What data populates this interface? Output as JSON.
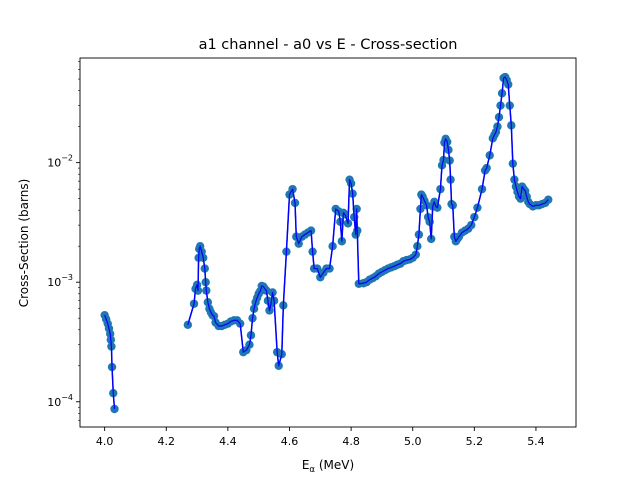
{
  "chart_data": {
    "type": "line",
    "title": "a1 channel - a0 vs E - Cross-section",
    "xlabel_main": "E",
    "xlabel_sub": "α",
    "xlabel_unit": " (MeV)",
    "ylabel": "Cross-Section (barns)",
    "xlim": [
      3.92,
      5.53
    ],
    "ylim": [
      6.15e-05,
      0.075
    ],
    "yscale": "log",
    "grid": false,
    "x_ticks": [
      4.0,
      4.2,
      4.4,
      4.6,
      4.8,
      5.0,
      5.2,
      5.4
    ],
    "x_tick_labels": [
      "4.0",
      "4.2",
      "4.4",
      "4.6",
      "4.8",
      "5.0",
      "5.2",
      "5.4"
    ],
    "y_major_ticks": [
      {
        "value": 0.0001,
        "base": "10",
        "exp": "−4"
      },
      {
        "value": 0.001,
        "base": "10",
        "exp": "−3"
      },
      {
        "value": 0.01,
        "base": "10",
        "exp": "−2"
      }
    ],
    "colors": {
      "line": "#0000ff",
      "marker": "#1f77b4"
    },
    "series": [
      {
        "segments": [
          [
            [
              4.0,
              0.00053
            ],
            [
              4.005,
              0.00049
            ],
            [
              4.01,
              0.00045
            ],
            [
              4.014,
              0.00041
            ],
            [
              4.018,
              0.00037
            ],
            [
              4.02,
              0.00033
            ],
            [
              4.022,
              0.00029
            ],
            [
              4.024,
              0.000195
            ],
            [
              4.028,
              0.000118
            ],
            [
              4.032,
              8.7e-05
            ]
          ],
          [
            [
              4.27,
              0.00044
            ],
            [
              4.29,
              0.00066
            ],
            [
              4.295,
              0.00088
            ],
            [
              4.3,
              0.00095
            ],
            [
              4.303,
              0.00085
            ],
            [
              4.305,
              0.0016
            ],
            [
              4.307,
              0.0019
            ],
            [
              4.31,
              0.002
            ],
            [
              4.315,
              0.0018
            ],
            [
              4.32,
              0.0016
            ],
            [
              4.325,
              0.0013
            ],
            [
              4.328,
              0.001
            ],
            [
              4.33,
              0.00085
            ],
            [
              4.335,
              0.00068
            ],
            [
              4.34,
              0.0006
            ],
            [
              4.345,
              0.00056
            ],
            [
              4.35,
              0.00053
            ],
            [
              4.355,
              0.00052
            ],
            [
              4.36,
              0.00046
            ],
            [
              4.37,
              0.00043
            ],
            [
              4.38,
              0.00043
            ],
            [
              4.39,
              0.00044
            ],
            [
              4.4,
              0.00045
            ],
            [
              4.41,
              0.00047
            ],
            [
              4.42,
              0.00048
            ],
            [
              4.43,
              0.00048
            ],
            [
              4.44,
              0.00045
            ],
            [
              4.45,
              0.00026
            ],
            [
              4.46,
              0.00027
            ],
            [
              4.47,
              0.0003
            ],
            [
              4.475,
              0.00036
            ],
            [
              4.48,
              0.0005
            ],
            [
              4.485,
              0.0006
            ],
            [
              4.49,
              0.00068
            ],
            [
              4.495,
              0.00074
            ],
            [
              4.5,
              0.0008
            ],
            [
              4.505,
              0.00084
            ],
            [
              4.51,
              0.00093
            ],
            [
              4.515,
              0.00092
            ],
            [
              4.52,
              0.00088
            ],
            [
              4.525,
              0.00085
            ],
            [
              4.53,
              0.0007
            ],
            [
              4.535,
              0.00058
            ],
            [
              4.54,
              0.00066
            ],
            [
              4.545,
              0.00082
            ],
            [
              4.55,
              0.0007
            ],
            [
              4.56,
              0.00026
            ],
            [
              4.565,
              0.0002
            ],
            [
              4.575,
              0.00025
            ],
            [
              4.58,
              0.00064
            ],
            [
              4.59,
              0.0018
            ],
            [
              4.6,
              0.0054
            ],
            [
              4.61,
              0.006
            ],
            [
              4.618,
              0.0046
            ],
            [
              4.622,
              0.0024
            ],
            [
              4.63,
              0.0021
            ],
            [
              4.64,
              0.0024
            ],
            [
              4.65,
              0.0025
            ],
            [
              4.66,
              0.0026
            ],
            [
              4.67,
              0.0027
            ],
            [
              4.675,
              0.0018
            ],
            [
              4.68,
              0.0013
            ],
            [
              4.69,
              0.0013
            ],
            [
              4.7,
              0.0011
            ],
            [
              4.71,
              0.0012
            ],
            [
              4.72,
              0.0013
            ],
            [
              4.73,
              0.0013
            ],
            [
              4.74,
              0.002
            ],
            [
              4.75,
              0.0041
            ],
            [
              4.76,
              0.0039
            ],
            [
              4.765,
              0.0032
            ],
            [
              4.77,
              0.0022
            ],
            [
              4.775,
              0.0038
            ],
            [
              4.78,
              0.0037
            ],
            [
              4.79,
              0.0031
            ],
            [
              4.795,
              0.0072
            ],
            [
              4.8,
              0.0067
            ],
            [
              4.805,
              0.0055
            ],
            [
              4.81,
              0.0035
            ],
            [
              4.815,
              0.0025
            ],
            [
              4.818,
              0.0041
            ],
            [
              4.82,
              0.0027
            ],
            [
              4.825,
              0.00097
            ],
            [
              4.84,
              0.00098
            ],
            [
              4.85,
              0.001
            ],
            [
              4.86,
              0.00105
            ],
            [
              4.87,
              0.00108
            ],
            [
              4.88,
              0.00112
            ],
            [
              4.89,
              0.00118
            ],
            [
              4.9,
              0.00122
            ],
            [
              4.91,
              0.00126
            ],
            [
              4.92,
              0.0013
            ],
            [
              4.93,
              0.00133
            ],
            [
              4.94,
              0.00136
            ],
            [
              4.95,
              0.0014
            ],
            [
              4.96,
              0.00143
            ],
            [
              4.97,
              0.0015
            ],
            [
              4.98,
              0.00153
            ],
            [
              4.99,
              0.00155
            ],
            [
              5.0,
              0.0016
            ],
            [
              5.01,
              0.0017
            ],
            [
              5.015,
              0.002
            ],
            [
              5.02,
              0.0025
            ],
            [
              5.025,
              0.0041
            ],
            [
              5.028,
              0.0054
            ],
            [
              5.032,
              0.0052
            ],
            [
              5.038,
              0.0048
            ],
            [
              5.045,
              0.0044
            ],
            [
              5.05,
              0.0035
            ],
            [
              5.055,
              0.0032
            ],
            [
              5.06,
              0.0023
            ],
            [
              5.065,
              0.0043
            ],
            [
              5.07,
              0.0047
            ],
            [
              5.075,
              0.0043
            ],
            [
              5.08,
              0.0042
            ],
            [
              5.09,
              0.006
            ],
            [
              5.095,
              0.0095
            ],
            [
              5.1,
              0.0105
            ],
            [
              5.103,
              0.0147
            ],
            [
              5.107,
              0.0158
            ],
            [
              5.112,
              0.0149
            ],
            [
              5.116,
              0.0128
            ],
            [
              5.12,
              0.0104
            ],
            [
              5.123,
              0.0072
            ],
            [
              5.126,
              0.0045
            ],
            [
              5.13,
              0.0044
            ],
            [
              5.135,
              0.0024
            ],
            [
              5.14,
              0.0022
            ],
            [
              5.145,
              0.0023
            ],
            [
              5.15,
              0.0024
            ],
            [
              5.16,
              0.0026
            ],
            [
              5.17,
              0.0027
            ],
            [
              5.18,
              0.0028
            ],
            [
              5.19,
              0.003
            ],
            [
              5.2,
              0.0035
            ],
            [
              5.21,
              0.0042
            ],
            [
              5.225,
              0.006
            ],
            [
              5.235,
              0.0086
            ],
            [
              5.24,
              0.009
            ],
            [
              5.25,
              0.0115
            ],
            [
              5.26,
              0.016
            ],
            [
              5.265,
              0.017
            ],
            [
              5.27,
              0.018
            ],
            [
              5.275,
              0.02
            ],
            [
              5.28,
              0.024
            ],
            [
              5.285,
              0.03
            ],
            [
              5.29,
              0.038
            ],
            [
              5.295,
              0.051
            ],
            [
              5.3,
              0.052
            ],
            [
              5.305,
              0.049
            ],
            [
              5.31,
              0.045
            ],
            [
              5.315,
              0.03
            ],
            [
              5.32,
              0.0205
            ],
            [
              5.325,
              0.0098
            ],
            [
              5.33,
              0.0072
            ],
            [
              5.335,
              0.0063
            ],
            [
              5.34,
              0.0057
            ],
            [
              5.345,
              0.0052
            ],
            [
              5.35,
              0.005
            ],
            [
              5.355,
              0.0063
            ],
            [
              5.36,
              0.006
            ],
            [
              5.365,
              0.0058
            ],
            [
              5.37,
              0.0052
            ],
            [
              5.375,
              0.0047
            ],
            [
              5.38,
              0.0045
            ],
            [
              5.39,
              0.0043
            ],
            [
              5.4,
              0.0044
            ],
            [
              5.41,
              0.0044
            ],
            [
              5.42,
              0.0045
            ],
            [
              5.43,
              0.0046
            ],
            [
              5.44,
              0.0049
            ]
          ]
        ]
      }
    ]
  }
}
